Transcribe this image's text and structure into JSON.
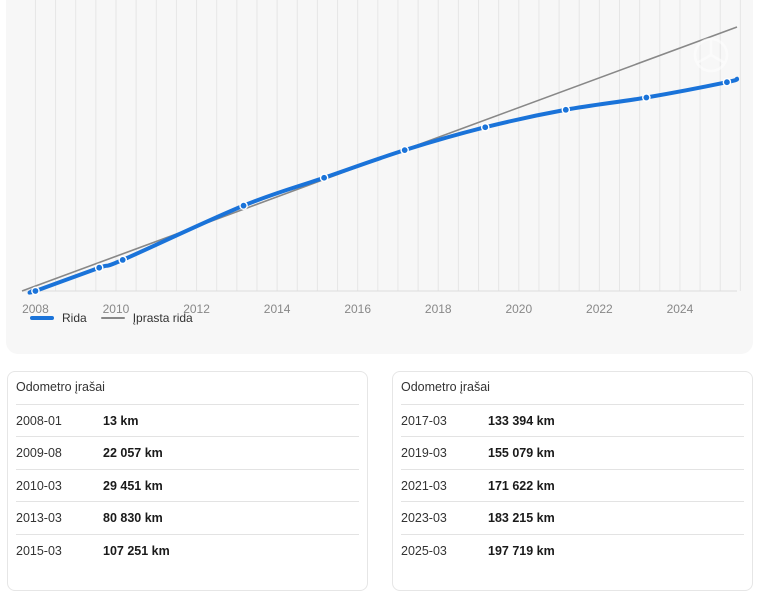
{
  "colors": {
    "mileage_line": "#1a73d9",
    "typical_line": "#888888",
    "card_bg": "#f7f7f7",
    "grid": "#e6e6e6"
  },
  "icons": [
    "steering-wheel-watermark-icon"
  ],
  "chart_data": {
    "type": "line",
    "title": "",
    "xlabel": "",
    "ylabel": "",
    "x_ticks": [
      "2008",
      "2010",
      "2012",
      "2014",
      "2016",
      "2018",
      "2020",
      "2022",
      "2024"
    ],
    "xlim": [
      "2007-09",
      "2025-06"
    ],
    "grid": "vertical",
    "legend_position": "bottom-left",
    "series": [
      {
        "name": "Rida",
        "values": [
          {
            "x": "2007-12",
            "y": 0
          },
          {
            "x": "2008-01",
            "y": 13
          },
          {
            "x": "2009-08",
            "y": 22057
          },
          {
            "x": "2010-03",
            "y": 29451
          },
          {
            "x": "2013-03",
            "y": 80830
          },
          {
            "x": "2015-03",
            "y": 107251
          },
          {
            "x": "2017-03",
            "y": 133394
          },
          {
            "x": "2019-03",
            "y": 155079
          },
          {
            "x": "2021-03",
            "y": 171622
          },
          {
            "x": "2023-03",
            "y": 183215
          },
          {
            "x": "2025-03",
            "y": 197719
          },
          {
            "x": "2025-06",
            "y": 201000
          }
        ]
      },
      {
        "name": "Įprasta rida",
        "values": [
          {
            "x": "2007-09",
            "y": 0
          },
          {
            "x": "2025-06",
            "y": 250000
          }
        ]
      }
    ]
  },
  "table_left": {
    "title": "Odometro įrašai",
    "rows": [
      {
        "date": "2008-01",
        "value": "13 km"
      },
      {
        "date": "2009-08",
        "value": "22 057 km"
      },
      {
        "date": "2010-03",
        "value": "29 451 km"
      },
      {
        "date": "2013-03",
        "value": "80 830 km"
      },
      {
        "date": "2015-03",
        "value": "107 251 km"
      }
    ]
  },
  "table_right": {
    "title": "Odometro įrašai",
    "rows": [
      {
        "date": "2017-03",
        "value": "133 394 km"
      },
      {
        "date": "2019-03",
        "value": "155 079 km"
      },
      {
        "date": "2021-03",
        "value": "171 622 km"
      },
      {
        "date": "2023-03",
        "value": "183 215 km"
      },
      {
        "date": "2025-03",
        "value": "197 719 km"
      }
    ]
  }
}
